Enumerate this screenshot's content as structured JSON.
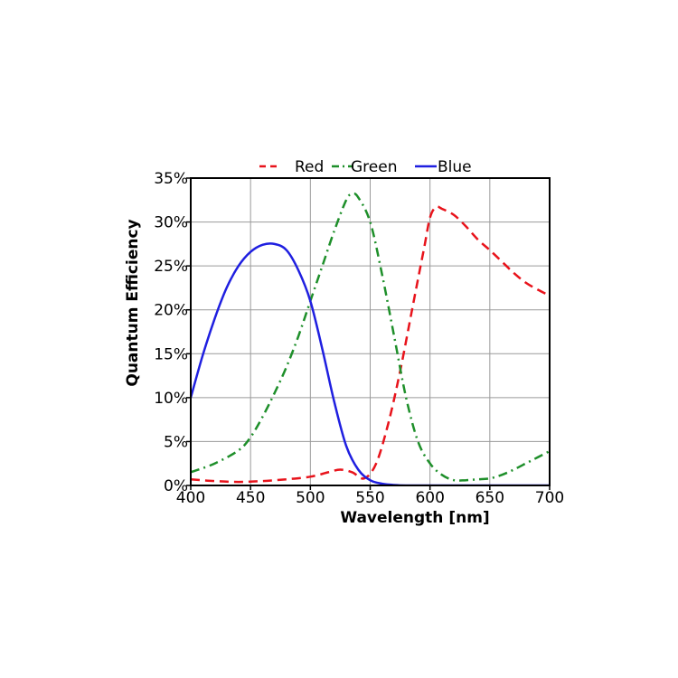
{
  "chart_data": {
    "type": "line",
    "xlabel": "Wavelength [nm]",
    "ylabel": "Quantum Efficiency",
    "xlim": [
      400,
      700
    ],
    "ylim": [
      0,
      35
    ],
    "x_ticks": [
      400,
      450,
      500,
      550,
      600,
      650,
      700
    ],
    "y_ticks": [
      0,
      5,
      10,
      15,
      20,
      25,
      30,
      35
    ],
    "x_tick_labels": [
      "400",
      "450",
      "500",
      "550",
      "600",
      "650",
      "700"
    ],
    "y_tick_labels": [
      "0%",
      "5%",
      "10%",
      "15%",
      "20%",
      "25%",
      "30%",
      "35%"
    ],
    "grid": true,
    "legend_position": "top",
    "series": [
      {
        "name": "Red",
        "color": "#e8131b",
        "dash": "dashed",
        "x": [
          400,
          420,
          440,
          460,
          480,
          500,
          515,
          525,
          535,
          545,
          555,
          565,
          575,
          585,
          595,
          600,
          605,
          610,
          620,
          630,
          640,
          650,
          660,
          670,
          680,
          690,
          700
        ],
        "y": [
          0.7,
          0.5,
          0.4,
          0.5,
          0.7,
          1.0,
          1.5,
          1.8,
          1.5,
          0.8,
          2.5,
          7.0,
          13.0,
          20.0,
          27.0,
          30.5,
          31.7,
          31.5,
          30.8,
          29.5,
          28.0,
          26.8,
          25.5,
          24.2,
          23.1,
          22.3,
          21.6
        ]
      },
      {
        "name": "Green",
        "color": "#1e8f2a",
        "dash": "dashdot",
        "x": [
          400,
          420,
          440,
          450,
          460,
          470,
          480,
          490,
          500,
          510,
          520,
          530,
          535,
          540,
          550,
          560,
          570,
          580,
          590,
          600,
          610,
          620,
          630,
          640,
          650,
          660,
          670,
          680,
          690,
          700
        ],
        "y": [
          1.5,
          2.5,
          4.0,
          5.5,
          7.8,
          10.5,
          13.5,
          17.0,
          21.0,
          25.0,
          29.0,
          32.5,
          33.2,
          32.8,
          30.0,
          24.0,
          17.0,
          10.0,
          5.0,
          2.5,
          1.2,
          0.6,
          0.6,
          0.7,
          0.8,
          1.2,
          1.8,
          2.5,
          3.2,
          3.9
        ]
      },
      {
        "name": "Blue",
        "color": "#1f1fe0",
        "dash": "solid",
        "x": [
          400,
          410,
          420,
          430,
          440,
          450,
          460,
          470,
          480,
          490,
          500,
          510,
          520,
          530,
          540,
          550,
          560,
          570,
          580,
          600,
          650,
          700
        ],
        "y": [
          10.0,
          14.8,
          19.0,
          22.5,
          25.0,
          26.6,
          27.4,
          27.5,
          26.8,
          24.5,
          21.0,
          15.5,
          9.5,
          4.5,
          1.8,
          0.6,
          0.2,
          0.05,
          0.0,
          0.0,
          0.0,
          0.0
        ]
      }
    ]
  }
}
